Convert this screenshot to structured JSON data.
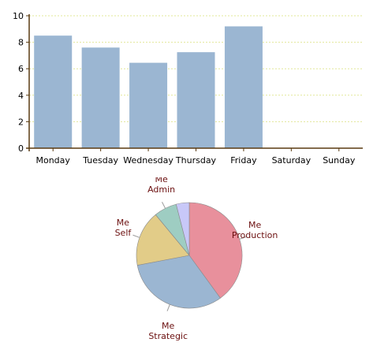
{
  "chart_data": [
    {
      "type": "bar",
      "categories": [
        "Monday",
        "Tuesday",
        "Wednesday",
        "Thursday",
        "Friday",
        "Saturday",
        "Sunday"
      ],
      "values": [
        8.5,
        7.6,
        6.45,
        7.25,
        9.2,
        0,
        0
      ],
      "ylim": [
        0,
        10
      ],
      "yticks": [
        0,
        2,
        4,
        6,
        8,
        10
      ],
      "grid": true,
      "colors": {
        "bar": "#9bb6d2",
        "axis": "#5a3a10",
        "grid": "#e2e89a"
      }
    },
    {
      "type": "pie",
      "slices": [
        {
          "label_line1": "Me",
          "label_line2": "Production",
          "value": 40,
          "color": "#e8909c"
        },
        {
          "label_line1": "Me",
          "label_line2": "Strategic",
          "value": 32,
          "color": "#9bb6d2"
        },
        {
          "label_line1": "Me",
          "label_line2": "Self",
          "value": 17,
          "color": "#e2cc88"
        },
        {
          "label_line1": "Me",
          "label_line2": "Admin",
          "value": 7,
          "color": "#9ecdc2"
        },
        {
          "label_line1": "",
          "label_line2": "",
          "value": 4,
          "color": "#c8c8f8"
        }
      ]
    }
  ]
}
